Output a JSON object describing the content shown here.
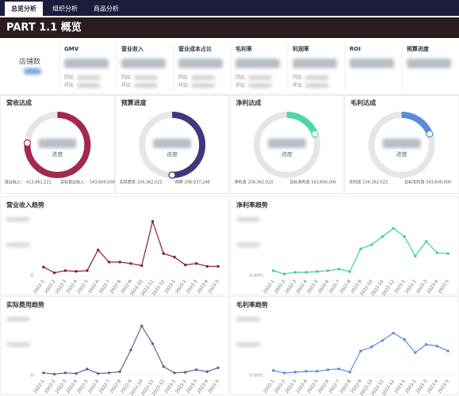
{
  "tabs": [
    "总览分析",
    "组织分析",
    "商品分析"
  ],
  "header": {
    "title": "PART 1.1 概览"
  },
  "kpi": {
    "store_label": "店铺数",
    "cards": [
      {
        "title": "GMV",
        "yoy": "同比",
        "mom": "环比"
      },
      {
        "title": "营业收入",
        "yoy": "同比",
        "mom": "环比"
      },
      {
        "title": "营业成本占比",
        "yoy": "同比",
        "mom": "环比"
      },
      {
        "title": "毛利率",
        "yoy": "同比",
        "mom": "环比"
      },
      {
        "title": "利润率",
        "yoy": "同比",
        "mom": "环比"
      },
      {
        "title": "ROI"
      },
      {
        "title": "预算进度"
      }
    ]
  },
  "gauges": [
    {
      "title": "营收达成",
      "center_label": "进度",
      "percent": 76,
      "color": "#a3294d",
      "left": {
        "label": "营业收入：",
        "value": "413,861,521"
      },
      "right": {
        "label": "目标营业收入：",
        "value": "543,600,000"
      }
    },
    {
      "title": "预算进度",
      "center_label": "进度",
      "percent": 50,
      "color": "#45357f",
      "left": {
        "label": "实际费用",
        "value": "104,362,023"
      },
      "right": {
        "label": "预算",
        "value": "206,837,248"
      }
    },
    {
      "title": "净利达成",
      "center_label": "进度",
      "percent": 19,
      "color": "#4fd6a8",
      "left": {
        "label": "净利润",
        "value": "104,362,023"
      },
      "right": {
        "label": "目标净利润",
        "value": "543,600,000"
      }
    },
    {
      "title": "毛利达成",
      "center_label": "进度",
      "percent": 19,
      "color": "#5b8ae0",
      "left": {
        "label": "毛利润",
        "value": "104,362,023"
      },
      "right": {
        "label": "目标毛利润",
        "value": "543,600,000"
      }
    }
  ],
  "chart_data": [
    {
      "type": "line",
      "title": "营业收入趋势",
      "categories": [
        "2022-1",
        "2022-2",
        "2022-3",
        "2022-4",
        "2022-5",
        "2022-6",
        "2022-7",
        "2022-8",
        "2022-9",
        "2022-10",
        "2022-11",
        "2022-12",
        "2023-1",
        "2023-2",
        "2023-3",
        "2023-4",
        "2023-5"
      ],
      "series": [
        {
          "color": "#8b1a3a",
          "values": [
            12,
            4,
            7,
            6,
            7,
            36,
            19,
            19,
            17,
            14,
            76,
            31,
            26,
            15,
            17,
            13,
            13
          ]
        }
      ],
      "ylim": [
        0,
        80
      ],
      "yticks": [
        0
      ]
    },
    {
      "type": "line",
      "title": "净利率趋势",
      "categories": [
        "2022-1",
        "2022-2",
        "2022-3",
        "2022-4",
        "2022-5",
        "2022-6",
        "2022-7",
        "2022-8",
        "2022-9",
        "2022-10",
        "2022-11",
        "2022-12",
        "2023-1",
        "2023-2",
        "2023-3",
        "2023-4",
        "2023-5"
      ],
      "series": [
        {
          "color": "#3ecf9a",
          "values": [
            0.6,
            0.2,
            0.4,
            0.4,
            0.5,
            0.6,
            0.8,
            0.5,
            3.3,
            3.8,
            4.8,
            5.8,
            4.8,
            2.4,
            4.2,
            2.8,
            2.7
          ]
        }
      ],
      "ylim": [
        0,
        7
      ],
      "yticks": [
        {
          "value": 0,
          "label": "0.00%"
        }
      ]
    },
    {
      "type": "line",
      "title": "实际费用趋势",
      "categories": [
        "2022-1",
        "2022-2",
        "2022-3",
        "2022-4",
        "2022-5",
        "2022-6",
        "2022-7",
        "2022-8",
        "2022-9",
        "2022-10",
        "2022-11",
        "2022-12",
        "2023-1",
        "2023-2",
        "2023-3",
        "2023-4",
        "2023-5"
      ],
      "series": [
        {
          "color": "#6b5b9a",
          "values": [
            4,
            2,
            4,
            3,
            10,
            3,
            4,
            6,
            40,
            78,
            50,
            14,
            4,
            5,
            9,
            6,
            12
          ]
        }
      ],
      "ylim": [
        0,
        90
      ],
      "yticks": [
        0
      ]
    },
    {
      "type": "line",
      "title": "毛利率趋势",
      "categories": [
        "2022-1",
        "2022-2",
        "2022-3",
        "2022-4",
        "2022-5",
        "2022-6",
        "2022-7",
        "2022-8",
        "2022-9",
        "2022-10",
        "2022-11",
        "2022-12",
        "2023-1",
        "2023-2",
        "2023-3",
        "2023-4",
        "2023-5"
      ],
      "series": [
        {
          "color": "#5b8ae0",
          "values": [
            0.6,
            0.3,
            0.4,
            0.5,
            0.5,
            0.7,
            0.8,
            0.4,
            3.0,
            3.5,
            4.3,
            5.2,
            4.4,
            2.8,
            3.8,
            3.6,
            3.0
          ]
        }
      ],
      "ylim": [
        0,
        7
      ],
      "yticks": [
        {
          "value": 0,
          "label": "0.00%"
        }
      ]
    }
  ]
}
